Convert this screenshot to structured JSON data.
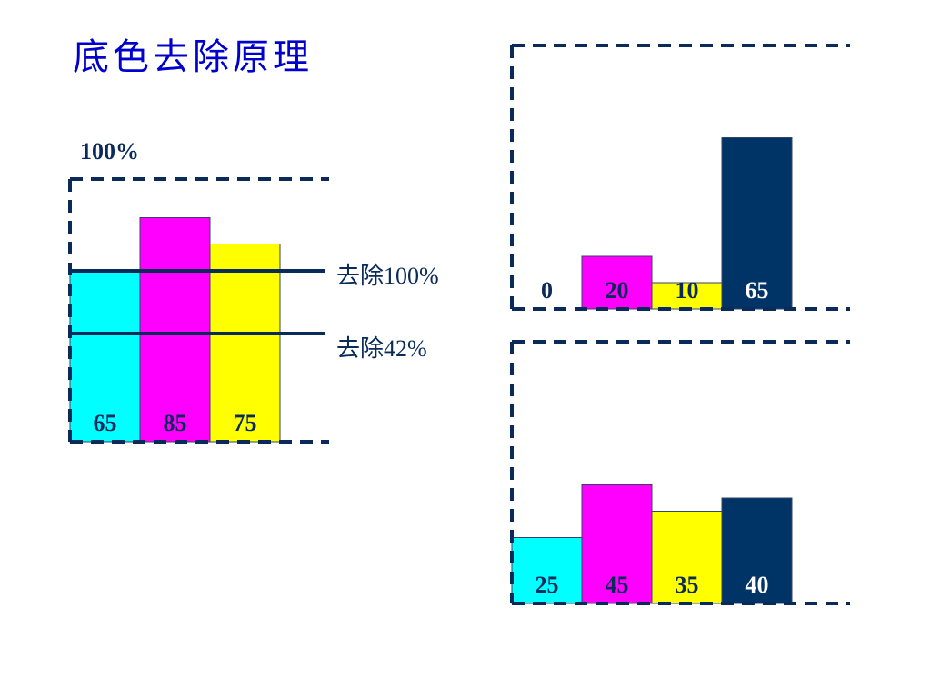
{
  "title": "底色去除原理",
  "max_label": "100%",
  "remove_labels": [
    "去除100%",
    "去除42%"
  ],
  "colors": {
    "cyan": "#00ffff",
    "magenta": "#ff00ff",
    "yellow": "#ffff00",
    "black": "#003366",
    "frame": "#0a2a5a"
  },
  "chart_data": [
    {
      "type": "bar",
      "categories": [
        "C",
        "M",
        "Y"
      ],
      "values": [
        65,
        85,
        75
      ],
      "labels": [
        "65",
        "85",
        "75"
      ],
      "ylim": [
        0,
        100
      ]
    },
    {
      "type": "bar",
      "categories": [
        "C",
        "M",
        "Y",
        "K"
      ],
      "values": [
        0,
        20,
        10,
        65
      ],
      "labels": [
        "0",
        "20",
        "10",
        "65"
      ],
      "ylim": [
        0,
        100
      ]
    },
    {
      "type": "bar",
      "categories": [
        "C",
        "M",
        "Y",
        "K"
      ],
      "values": [
        25,
        45,
        35,
        40
      ],
      "labels": [
        "25",
        "45",
        "35",
        "40"
      ],
      "ylim": [
        0,
        100
      ]
    }
  ]
}
